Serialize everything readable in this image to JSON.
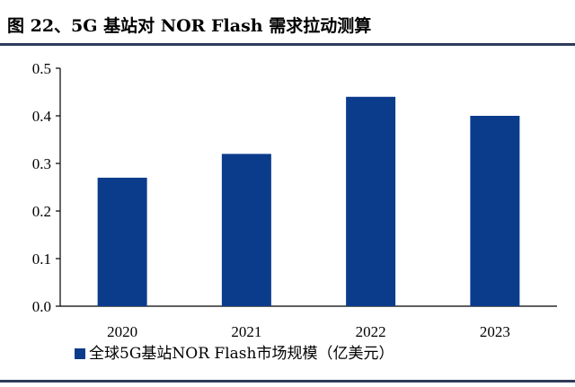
{
  "title": "图 22、5G 基站对 NOR Flash 需求拉动测算",
  "colors": {
    "bar": "#0b3c8c",
    "rule": "#2e3b5b",
    "axis": "#000000"
  },
  "chart_data": {
    "type": "bar",
    "categories": [
      "2020",
      "2021",
      "2022",
      "2023"
    ],
    "series": [
      {
        "name": "全球5G基站NOR Flash市场规模（亿美元）",
        "values": [
          0.27,
          0.32,
          0.44,
          0.4
        ]
      }
    ],
    "yticks": [
      "0.0",
      "0.1",
      "0.2",
      "0.3",
      "0.4",
      "0.5"
    ],
    "ylim": [
      0,
      0.5
    ],
    "grid": false,
    "legend_position": "bottom-left"
  }
}
